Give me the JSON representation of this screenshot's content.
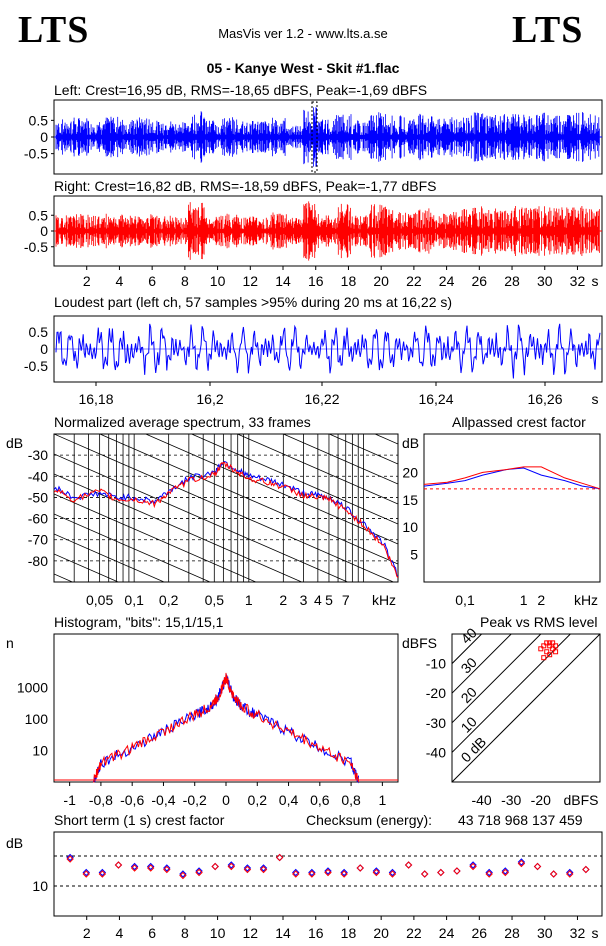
{
  "header": {
    "logo_left": "LTS",
    "logo_right": "LTS",
    "app": "MasVis ver 1.2 - www.lts.a.se",
    "file": "05 - Kanye West - Skit #1.flac"
  },
  "colors": {
    "left": "#0000ff",
    "right": "#ff0000",
    "grid": "#000000"
  },
  "panels": {
    "left_title": "Left: Crest=16,95 dB, RMS=-18,65 dBFS, Peak=-1,69 dBFS",
    "right_title": "Right: Crest=16,82 dB, RMS=-18,59 dBFS, Peak=-1,77 dBFS",
    "loudest_title": "Loudest part (left  ch, 57 samples >95% during 20 ms at 16,22 s)",
    "spectrum_title": "Normalized average spectrum, 33 frames",
    "allpass_title": "Allpassed crest factor",
    "histogram_title": "Histogram, \"bits\": 15,1/15,1",
    "pvr_title": "Peak vs RMS level",
    "shortterm_title": "Short term (1 s) crest factor",
    "checksum_label": "Checksum (energy):",
    "checksum_value": "43 718 968 137 459"
  },
  "axes": {
    "wave_y": [
      "0.5",
      "0",
      "-0.5"
    ],
    "time_x": [
      "2",
      "4",
      "6",
      "8",
      "10",
      "12",
      "14",
      "16",
      "18",
      "20",
      "22",
      "24",
      "26",
      "28",
      "30",
      "32",
      "s"
    ],
    "loud_x": [
      "16,18",
      "16,2",
      "16,22",
      "16,24",
      "16,26",
      "s"
    ],
    "spec_y_unit": "dB",
    "spec_y": [
      "-30",
      "-40",
      "-50",
      "-60",
      "-70",
      "-80"
    ],
    "spec_x": [
      "0,05",
      "0,1",
      "0,2",
      "0,5",
      "1",
      "2",
      "3",
      "4",
      "5",
      "7",
      "kHz"
    ],
    "ap_y_unit": "dB",
    "ap_y": [
      "20",
      "15",
      "10",
      "5"
    ],
    "ap_x": [
      "0,1",
      "1",
      "2",
      "kHz"
    ],
    "hist_y_unit": "n",
    "hist_y": [
      "1000",
      "100",
      "10"
    ],
    "hist_x": [
      "-1",
      "-0,8",
      "-0,6",
      "-0,4",
      "-0,2",
      "0",
      "0,2",
      "0,4",
      "0,6",
      "0,8",
      "1"
    ],
    "pvr_y_unit": "dBFS",
    "pvr_y": [
      "-10",
      "-20",
      "-30",
      "-40"
    ],
    "pvr_x": [
      "-40",
      "-30",
      "-20",
      "dBFS"
    ],
    "pvr_lines": [
      "40",
      "30",
      "20",
      "10",
      "0 dB"
    ],
    "st_y_unit": "dB",
    "st_y": [
      "10"
    ]
  },
  "chart_data": [
    {
      "type": "line",
      "name": "left-waveform",
      "xlabel": "s",
      "xlim": [
        0,
        33.5
      ],
      "ylim": [
        -1,
        1
      ],
      "envelope": [
        0.55,
        0.6,
        0.55,
        0.62,
        0.55,
        0.6,
        0.5,
        0.45,
        0.8,
        0.55,
        0.6,
        0.55,
        0.5,
        0.6,
        0.35,
        0.9,
        0.55,
        0.7,
        0.5,
        0.75,
        0.65,
        0.6,
        0.7,
        0.55,
        0.65,
        0.75,
        0.7,
        0.75,
        0.7,
        0.75,
        0.7,
        0.75,
        0.7
      ]
    },
    {
      "type": "line",
      "name": "right-waveform",
      "xlabel": "s",
      "xlim": [
        0,
        33.5
      ],
      "ylim": [
        -1,
        1
      ],
      "envelope": [
        0.5,
        0.55,
        0.5,
        0.55,
        0.5,
        0.55,
        0.5,
        0.45,
        0.95,
        0.5,
        0.55,
        0.5,
        0.45,
        0.6,
        0.45,
        0.95,
        0.5,
        0.9,
        0.5,
        0.85,
        0.7,
        0.6,
        0.75,
        0.55,
        0.7,
        0.8,
        0.75,
        0.8,
        0.75,
        0.8,
        0.75,
        0.8,
        0.75
      ]
    },
    {
      "type": "line",
      "name": "loudest-part",
      "xlabel": "s",
      "xlim": [
        16.17,
        16.27
      ],
      "ylim": [
        -1,
        1
      ]
    },
    {
      "type": "line",
      "name": "spectrum",
      "xlabel": "kHz",
      "ylabel": "dB",
      "ylim": [
        -90,
        -20
      ],
      "xscale": "log",
      "x": [
        0.02,
        0.03,
        0.05,
        0.07,
        0.1,
        0.15,
        0.2,
        0.3,
        0.5,
        0.6,
        0.8,
        1,
        1.5,
        2,
        3,
        4,
        5,
        7,
        10,
        15,
        20
      ],
      "series": [
        {
          "values": [
            -45,
            -50,
            -48,
            -50,
            -50,
            -52,
            -47,
            -41,
            -38,
            -33,
            -37,
            -40,
            -42,
            -44,
            -48,
            -49,
            -50,
            -55,
            -62,
            -72,
            -87
          ]
        },
        {
          "values": [
            -46,
            -51,
            -47,
            -51,
            -51,
            -53,
            -48,
            -42,
            -39,
            -34,
            -38,
            -41,
            -43,
            -45,
            -49,
            -50,
            -51,
            -56,
            -63,
            -73,
            -88
          ]
        }
      ]
    },
    {
      "type": "line",
      "name": "allpassed-crest",
      "xlabel": "kHz",
      "ylabel": "dB",
      "ylim": [
        0,
        25
      ],
      "xscale": "log",
      "x": [
        0.02,
        0.05,
        0.1,
        0.2,
        0.5,
        1,
        2,
        5,
        10,
        20
      ],
      "reference_db": 17,
      "series": [
        {
          "values": [
            17.5,
            18,
            18.5,
            19.5,
            20.5,
            20.8,
            19.5,
            18.5,
            17.5,
            17
          ]
        },
        {
          "values": [
            17.8,
            18.2,
            19,
            20,
            20.5,
            21,
            21,
            19,
            18,
            17
          ]
        }
      ]
    },
    {
      "type": "area",
      "name": "histogram",
      "ylabel": "n",
      "xlim": [
        -1.1,
        1.1
      ],
      "yscale": "log",
      "ylim": [
        1,
        10000
      ],
      "x": [
        -0.85,
        -0.8,
        -0.6,
        -0.4,
        -0.2,
        -0.1,
        -0.05,
        0,
        0.05,
        0.1,
        0.2,
        0.4,
        0.6,
        0.8,
        0.85
      ],
      "values": [
        1,
        4,
        12,
        40,
        130,
        250,
        500,
        2000,
        500,
        250,
        130,
        40,
        12,
        4,
        1
      ]
    },
    {
      "type": "scatter",
      "name": "peak-vs-rms",
      "xlabel": "dBFS",
      "ylabel": "dBFS",
      "xlim": [
        -50,
        0
      ],
      "ylim": [
        -50,
        0
      ],
      "x": [
        -20,
        -19,
        -18,
        -17,
        -16,
        -15,
        -18,
        -17,
        -19,
        -16,
        -15,
        -17
      ],
      "y": [
        -5,
        -4,
        -3,
        -4,
        -3,
        -4,
        -6,
        -7,
        -8,
        -5,
        -6,
        -3
      ]
    },
    {
      "type": "scatter",
      "name": "short-term-crest",
      "xlabel": "s",
      "ylabel": "dB",
      "xlim": [
        0,
        34
      ],
      "ylim": [
        0,
        25
      ],
      "reference_lines": [
        10,
        20
      ],
      "x": [
        1,
        2,
        3,
        4,
        5,
        6,
        7,
        8,
        9,
        10,
        11,
        12,
        13,
        14,
        15,
        16,
        17,
        18,
        19,
        20,
        21,
        22,
        23,
        24,
        25,
        26,
        27,
        28,
        29,
        30,
        31,
        32,
        33
      ],
      "series": [
        {
          "values": [
            19.5,
            14.5,
            14.5,
            17,
            16.5,
            16.5,
            16,
            14,
            15,
            16.5,
            17,
            16,
            16,
            19.5,
            14.5,
            14.5,
            15,
            14.5,
            16,
            15,
            14.5,
            17,
            14,
            14.5,
            15,
            17,
            14.5,
            15,
            18,
            16.5,
            14,
            14.5,
            15.5
          ]
        },
        {
          "values": [
            19,
            14,
            14,
            17,
            16,
            16,
            15.5,
            13.5,
            14.5,
            16.5,
            16.5,
            15.5,
            15.5,
            19.5,
            14,
            14,
            14.5,
            14,
            16,
            14.5,
            14,
            17,
            14,
            14.5,
            15,
            16.5,
            14,
            14.5,
            17.5,
            16.5,
            14,
            14,
            15.5
          ]
        }
      ]
    }
  ]
}
